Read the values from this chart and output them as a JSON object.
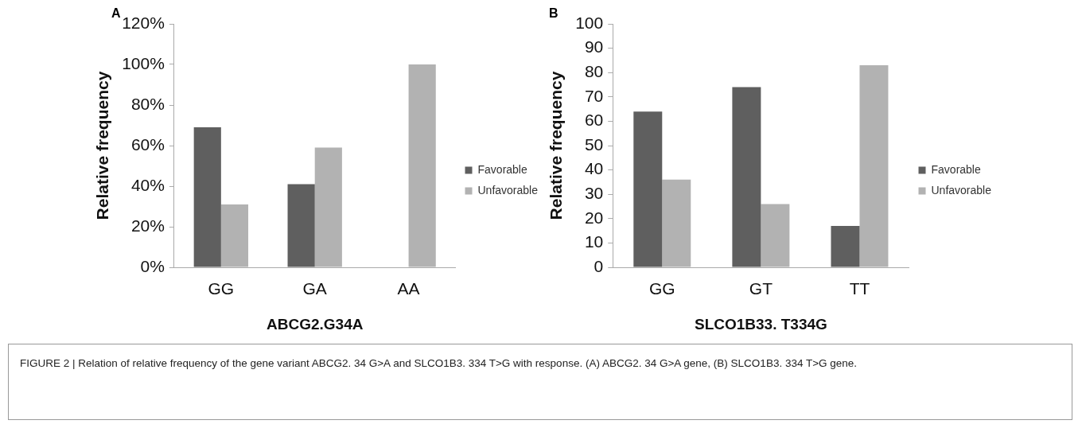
{
  "chart_data": [
    {
      "type": "bar",
      "xlabel": "ABCG2.G34A",
      "ylabel": "Relative frequency",
      "categories": [
        "GG",
        "GA",
        "AA"
      ],
      "series": [
        {
          "name": "Favorable",
          "color": "#5f5f5f",
          "values": [
            69,
            41,
            0
          ]
        },
        {
          "name": "Unfavorable",
          "color": "#b2b2b2",
          "values": [
            31,
            59,
            100
          ]
        }
      ],
      "ylim": [
        0,
        120
      ],
      "yticks": [
        {
          "value": 0,
          "label": "0%"
        },
        {
          "value": 20,
          "label": "20%"
        },
        {
          "value": 40,
          "label": "40%"
        },
        {
          "value": 60,
          "label": "60%"
        },
        {
          "value": 80,
          "label": "80%"
        },
        {
          "value": 100,
          "label": "100%"
        },
        {
          "value": 120,
          "label": "120%"
        }
      ],
      "grid": false,
      "legend": "right",
      "annotations": [
        "A",
        "FIGURE 2 | Relation of relative frequency of the gene variant ABCG2. 34 G>A and SLCO1B3. 334 T>G with response. (A) ABCG2. 34 G>A gene, (B) SLCO1B3. 334 T>G gene."
      ]
    },
    {
      "type": "bar",
      "xlabel": "SLCO1B33. T334G",
      "ylabel": "Relative frequency",
      "categories": [
        "GG",
        "GT",
        "TT"
      ],
      "series": [
        {
          "name": "Favorable",
          "color": "#5f5f5f",
          "values": [
            64,
            74,
            17
          ]
        },
        {
          "name": "Unfavorable",
          "color": "#b2b2b2",
          "values": [
            36,
            26,
            83
          ]
        }
      ],
      "ylim": [
        0,
        100
      ],
      "yticks": [
        0,
        10,
        20,
        30,
        40,
        50,
        60,
        70,
        80,
        90,
        100
      ],
      "grid": false,
      "legend": "right",
      "annotations": [
        "B"
      ]
    }
  ]
}
